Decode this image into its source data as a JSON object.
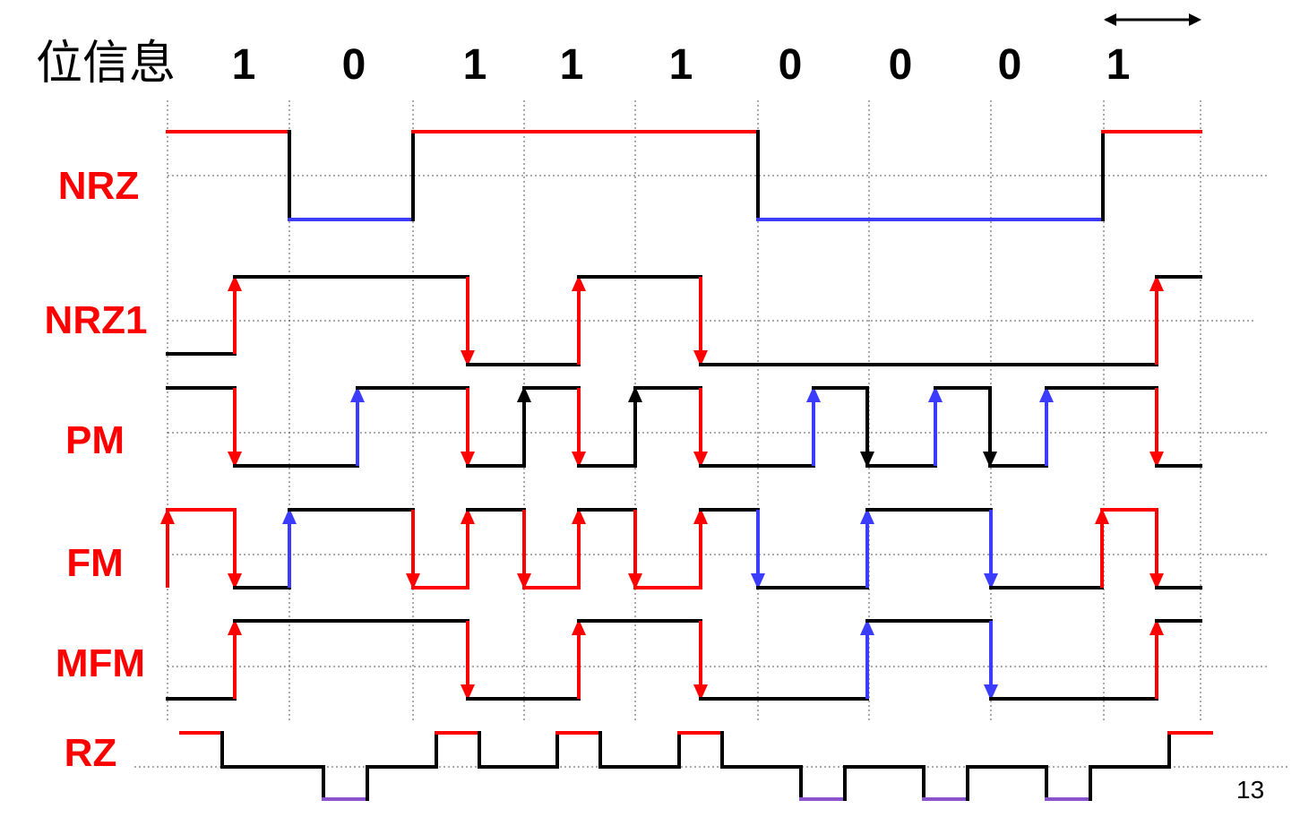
{
  "title": "位信息",
  "bits": [
    "1",
    "0",
    "1",
    "1",
    "1",
    "0",
    "0",
    "0",
    "1"
  ],
  "page_number": "13",
  "colors": {
    "red": "#ff0000",
    "blue": "#3c3cff",
    "black": "#000000",
    "purple": "#8a55cc",
    "grid": "#555555"
  },
  "signals": [
    {
      "key": "nrz",
      "label": "NRZ"
    },
    {
      "key": "nrzi",
      "label": "NRZ1"
    },
    {
      "key": "pm",
      "label": "PM"
    },
    {
      "key": "fm",
      "label": "FM"
    },
    {
      "key": "mfm",
      "label": "MFM"
    },
    {
      "key": "rz",
      "label": "RZ"
    }
  ]
}
